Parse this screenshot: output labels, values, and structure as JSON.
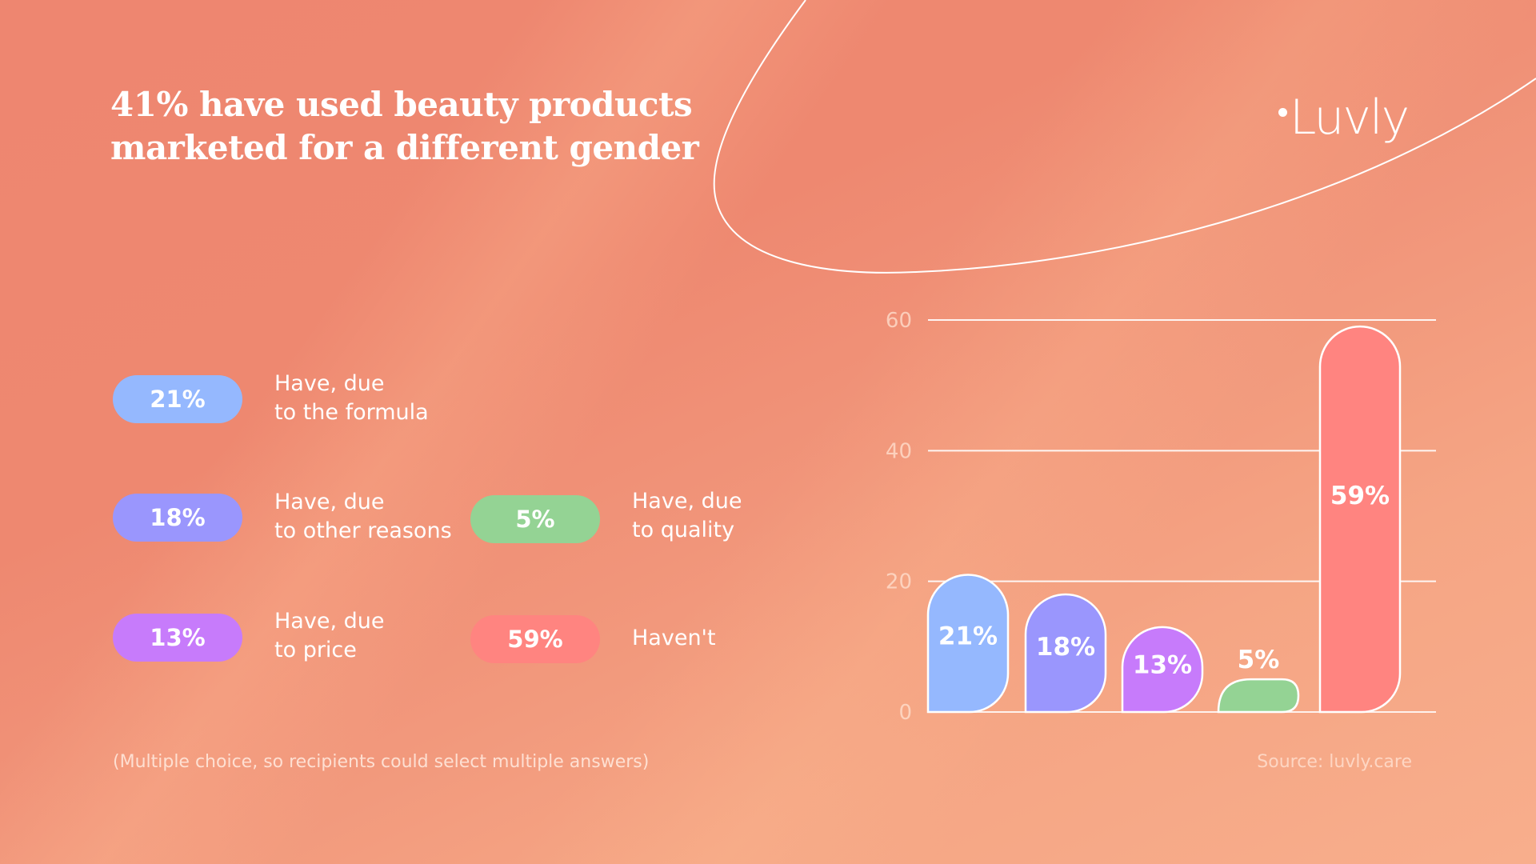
{
  "title": {
    "line1": "41% have used beauty products",
    "line2": "marketed for a different gender"
  },
  "logo": {
    "text": "Luvly"
  },
  "legend": [
    {
      "value": "21%",
      "line1": "Have, due",
      "line2": "to the formula",
      "color": "#95B8FE"
    },
    {
      "value": "18%",
      "line1": "Have, due",
      "line2": "to other reasons",
      "color": "#9A96FD"
    },
    {
      "value": "13%",
      "line1": "Have, due",
      "line2": "to price",
      "color": "#C77BFB"
    },
    {
      "value": "5%",
      "line1": "Have, due",
      "line2": "to quality",
      "color": "#94D394"
    },
    {
      "value": "59%",
      "line1": "Haven't",
      "line2": "",
      "color": "#FF8480"
    }
  ],
  "footnote": "(Multiple choice, so recipients could select multiple answers)",
  "source": "Source: luvly.care",
  "chart_data": {
    "type": "bar",
    "title": "41% have used beauty products marketed for a different gender",
    "categories": [
      "Have, due to the formula",
      "Have, due to other reasons",
      "Have, due to price",
      "Have, due to quality",
      "Haven't"
    ],
    "values": [
      21,
      18,
      13,
      5,
      59
    ],
    "data_labels": [
      "21%",
      "18%",
      "13%",
      "5%",
      "59%"
    ],
    "colors": [
      "#95B8FE",
      "#9A96FD",
      "#C77BFB",
      "#94D394",
      "#FF8480"
    ],
    "yticks": [
      0,
      20,
      40,
      60
    ],
    "ylim": [
      0,
      60
    ],
    "xlabel": "",
    "ylabel": "",
    "grid": true,
    "legend": "left"
  }
}
